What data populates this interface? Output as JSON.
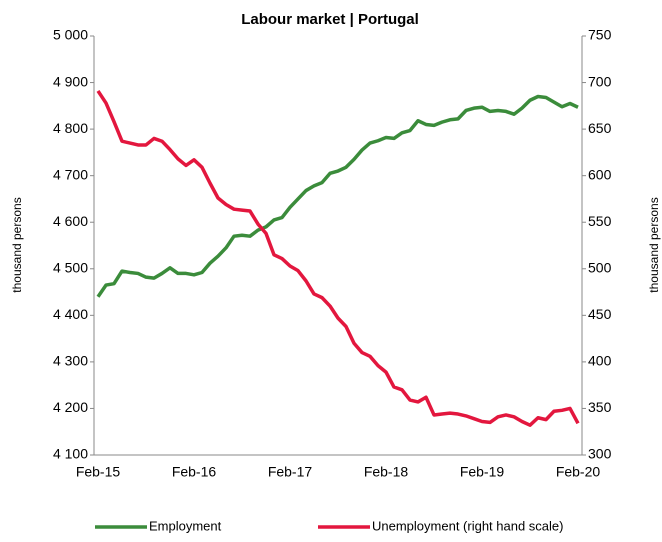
{
  "chart_data": {
    "type": "line",
    "title": "Labour market | Portugal",
    "ylabel": "thousand persons",
    "y2label": "thousand persons",
    "categories": [
      "Feb-15",
      null,
      null,
      null,
      null,
      null,
      null,
      null,
      null,
      null,
      null,
      null,
      "Feb-16",
      null,
      null,
      null,
      null,
      null,
      null,
      null,
      null,
      null,
      null,
      null,
      "Feb-17",
      null,
      null,
      null,
      null,
      null,
      null,
      null,
      null,
      null,
      null,
      null,
      "Feb-18",
      null,
      null,
      null,
      null,
      null,
      null,
      null,
      null,
      null,
      null,
      null,
      "Feb-19",
      null,
      null,
      null,
      null,
      null,
      null,
      null,
      null,
      null,
      null,
      null,
      "Feb-20"
    ],
    "series": [
      {
        "name": "Employment",
        "color": "#3b8c3b",
        "values": [
          4440,
          4465,
          4468,
          4495,
          4492,
          4490,
          4482,
          4480,
          4490,
          4502,
          4490,
          4490,
          4487,
          4492,
          4512,
          4527,
          4545,
          4570,
          4572,
          4570,
          4583,
          4590,
          4605,
          4610,
          4632,
          4650,
          4668,
          4678,
          4685,
          4705,
          4710,
          4718,
          4735,
          4755,
          4770,
          4775,
          4782,
          4780,
          4792,
          4797,
          4818,
          4810,
          4808,
          4815,
          4820,
          4822,
          4840,
          4845,
          4847,
          4838,
          4840,
          4838,
          4832,
          4845,
          4862,
          4870,
          4868,
          4858,
          4848,
          4855,
          4847
        ]
      },
      {
        "name": "Unemployment (right hand scale)",
        "color": "#e3173e",
        "axis": "y2",
        "values": [
          691,
          678,
          658,
          637,
          635,
          633,
          633,
          640,
          637,
          628,
          618,
          611,
          617,
          609,
          592,
          576,
          569,
          564,
          563,
          562,
          548,
          538,
          515,
          511,
          503,
          498,
          487,
          473,
          469,
          460,
          447,
          438,
          420,
          410,
          406,
          396,
          389,
          373,
          370,
          359,
          357,
          362,
          343,
          344,
          345,
          344,
          342,
          339,
          336,
          335,
          341,
          343,
          341,
          336,
          332,
          340,
          338,
          347,
          348,
          350,
          334
        ]
      }
    ],
    "ylim": [
      4100,
      5000
    ],
    "yticks": [
      {
        "value": 4100,
        "label": "4 100"
      },
      {
        "value": 4200,
        "label": "4 200"
      },
      {
        "value": 4300,
        "label": "4 300"
      },
      {
        "value": 4400,
        "label": "4 400"
      },
      {
        "value": 4500,
        "label": "4 500"
      },
      {
        "value": 4600,
        "label": "4 600"
      },
      {
        "value": 4700,
        "label": "4 700"
      },
      {
        "value": 4800,
        "label": "4 800"
      },
      {
        "value": 4900,
        "label": "4 900"
      },
      {
        "value": 5000,
        "label": "5 000"
      }
    ],
    "y2lim": [
      300,
      750
    ],
    "y2ticks": [
      300,
      350,
      400,
      450,
      500,
      550,
      600,
      650,
      700,
      750
    ],
    "legend": "bottom"
  }
}
